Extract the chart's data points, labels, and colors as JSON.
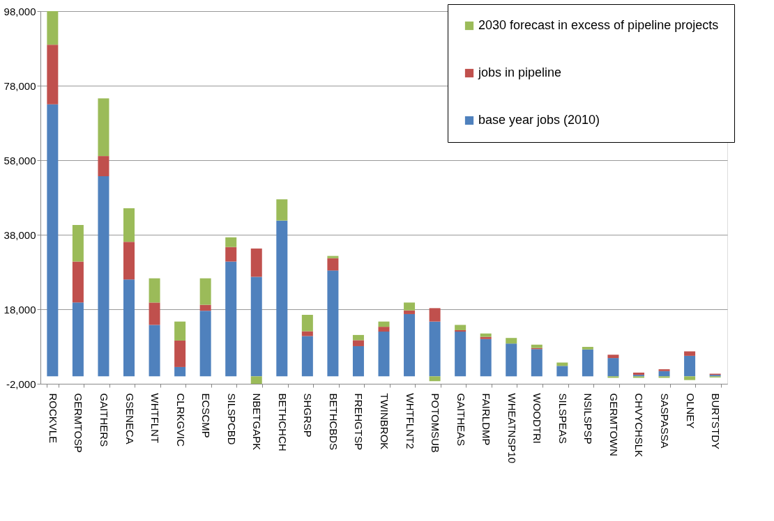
{
  "chart_data": {
    "type": "bar",
    "stacked": true,
    "categories": [
      "ROCKVLE",
      "GERMTOSP",
      "GAITHERS",
      "GSENECA",
      "WHTFLNT",
      "CLRKGVIC",
      "ECSCMP",
      "SILSPCBD",
      "NBETGAPK",
      "BETHCHCH",
      "SHGRSP",
      "BETHCBDS",
      "FREHGTSP",
      "TWINBROK",
      "WHTFLNT2",
      "POTOMSUB",
      "GAITHEAS",
      "FAIRLDMP",
      "WHEATNSP10",
      "WOODTRI",
      "SILSPEAS",
      "NSILSPSP",
      "GERMTOWN",
      "CHVYCHSLK",
      "SASPASSA",
      "OLNEY",
      "BURTSTDY"
    ],
    "series": [
      {
        "name": "base year jobs (2010)",
        "color": "#4f81bd",
        "values": [
          73000,
          19800,
          53700,
          26000,
          13800,
          2500,
          17600,
          30800,
          26700,
          41800,
          10800,
          28400,
          8100,
          12000,
          16700,
          14700,
          12000,
          10000,
          8800,
          7300,
          2800,
          7200,
          4900,
          400,
          1400,
          5500,
          400
        ]
      },
      {
        "name": "jobs in pipeline",
        "color": "#c0504d",
        "values": [
          16000,
          11000,
          5400,
          10100,
          6000,
          7100,
          1600,
          3900,
          7600,
          0,
          1300,
          3300,
          1600,
          1300,
          1000,
          3600,
          400,
          600,
          0,
          300,
          0,
          0,
          900,
          600,
          500,
          1200,
          300
        ]
      },
      {
        "name": "2030 forecast in excess of pipeline projects",
        "color": "#9bbb59",
        "values": [
          9000,
          9800,
          15500,
          9000,
          6500,
          5100,
          7100,
          2600,
          -2000,
          5700,
          4400,
          600,
          1400,
          1400,
          2100,
          -1300,
          1400,
          900,
          1500,
          900,
          900,
          700,
          -400,
          -400,
          -400,
          -1000,
          -300
        ]
      }
    ],
    "ylim": [
      -2000,
      98000
    ],
    "yticks": [
      {
        "value": -2000,
        "label": "-2,000"
      },
      {
        "value": 18000,
        "label": "18,000"
      },
      {
        "value": 38000,
        "label": "38,000"
      },
      {
        "value": 58000,
        "label": "58,000"
      },
      {
        "value": 78000,
        "label": "78,000"
      },
      {
        "value": 98000,
        "label": "98,000"
      }
    ],
    "grid": "y",
    "legend": "top right"
  }
}
